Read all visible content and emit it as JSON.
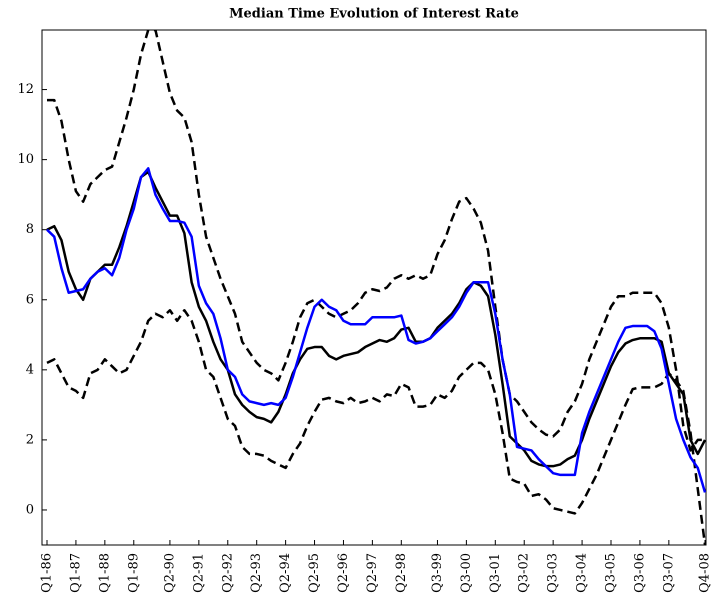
{
  "chart_data": {
    "type": "line",
    "title": "Median Time Evolution of Interest Rate",
    "categories": [
      "Q1-86",
      null,
      null,
      null,
      "Q1-87",
      null,
      null,
      null,
      "Q1-88",
      null,
      null,
      null,
      "Q1-89",
      null,
      null,
      null,
      null,
      "Q2-90",
      null,
      null,
      null,
      "Q2-91",
      null,
      null,
      null,
      "Q2-92",
      null,
      null,
      null,
      "Q2-93",
      null,
      null,
      null,
      "Q2-94",
      null,
      null,
      null,
      "Q2-95",
      null,
      null,
      null,
      "Q2-96",
      null,
      null,
      null,
      "Q2-97",
      null,
      null,
      null,
      "Q2-98",
      null,
      null,
      null,
      null,
      "Q3-99",
      null,
      null,
      null,
      "Q3-00",
      null,
      null,
      null,
      "Q3-01",
      null,
      null,
      null,
      "Q3-02",
      null,
      null,
      null,
      "Q3-03",
      null,
      null,
      null,
      "Q3-04",
      null,
      null,
      null,
      "Q3-05",
      null,
      null,
      null,
      "Q3-06",
      null,
      null,
      null,
      "Q3-07",
      null,
      null,
      null,
      null,
      "Q4-08"
    ],
    "series": [
      {
        "color": "#000000",
        "linestyle": "dashed",
        "values": [
          11.7,
          11.7,
          11.1,
          10.0,
          9.1,
          8.8,
          9.3,
          9.5,
          9.7,
          9.8,
          10.5,
          11.2,
          12.0,
          13.0,
          13.7,
          13.7,
          12.8,
          11.9,
          11.4,
          11.2,
          10.5,
          9.0,
          7.8,
          7.2,
          6.6,
          6.1,
          5.6,
          4.8,
          4.5,
          4.2,
          4.0,
          3.9,
          3.7,
          4.2,
          4.8,
          5.5,
          5.9,
          6.0,
          5.8,
          5.6,
          5.5,
          5.6,
          5.7,
          5.9,
          6.2,
          6.3,
          6.25,
          6.35,
          6.6,
          6.7,
          6.6,
          6.7,
          6.6,
          6.7,
          7.3,
          7.7,
          8.3,
          8.8,
          8.9,
          8.6,
          8.2,
          7.4,
          5.8,
          4.3,
          3.3,
          3.1,
          2.8,
          2.5,
          2.3,
          2.15,
          2.1,
          2.3,
          2.8,
          3.1,
          3.6,
          4.3,
          4.8,
          5.3,
          5.8,
          6.1,
          6.1,
          6.2,
          6.2,
          6.2,
          6.2,
          5.9,
          5.2,
          4.0,
          2.4,
          1.7,
          2.0,
          2.0
        ]
      },
      {
        "color": "#000000",
        "linestyle": "dashed",
        "values": [
          4.2,
          4.3,
          3.9,
          3.5,
          3.4,
          3.2,
          3.9,
          4.0,
          4.3,
          4.1,
          3.9,
          4.0,
          4.4,
          4.8,
          5.4,
          5.6,
          5.5,
          5.7,
          5.4,
          5.7,
          5.4,
          4.8,
          4.0,
          3.8,
          3.2,
          2.6,
          2.4,
          1.8,
          1.6,
          1.6,
          1.55,
          1.4,
          1.3,
          1.2,
          1.6,
          1.9,
          2.4,
          2.8,
          3.15,
          3.2,
          3.1,
          3.05,
          3.2,
          3.05,
          3.1,
          3.2,
          3.1,
          3.3,
          3.25,
          3.6,
          3.5,
          2.95,
          2.95,
          3.0,
          3.3,
          3.2,
          3.4,
          3.8,
          4.0,
          4.2,
          4.2,
          4.0,
          3.3,
          2.2,
          0.9,
          0.8,
          0.75,
          0.4,
          0.45,
          0.3,
          0.05,
          0.0,
          -0.05,
          -0.1,
          0.2,
          0.6,
          1.0,
          1.5,
          2.0,
          2.5,
          3.0,
          3.45,
          3.5,
          3.5,
          3.5,
          3.6,
          3.9,
          3.7,
          3.4,
          2.2,
          0.6,
          -1.0
        ]
      },
      {
        "color": "#000000",
        "linestyle": "solid",
        "values": [
          8.0,
          8.1,
          7.7,
          6.8,
          6.3,
          6.0,
          6.6,
          6.8,
          7.0,
          7.0,
          7.5,
          8.1,
          8.8,
          9.5,
          9.65,
          9.2,
          8.8,
          8.4,
          8.4,
          7.9,
          6.5,
          5.8,
          5.4,
          4.8,
          4.3,
          4.0,
          3.3,
          3.0,
          2.8,
          2.65,
          2.6,
          2.5,
          2.8,
          3.3,
          3.9,
          4.3,
          4.6,
          4.65,
          4.65,
          4.4,
          4.3,
          4.4,
          4.45,
          4.5,
          4.65,
          4.75,
          4.85,
          4.8,
          4.9,
          5.15,
          5.2,
          4.8,
          4.8,
          4.9,
          5.2,
          5.4,
          5.6,
          5.9,
          6.3,
          6.5,
          6.4,
          6.1,
          5.0,
          3.6,
          2.1,
          1.9,
          1.7,
          1.4,
          1.3,
          1.25,
          1.25,
          1.3,
          1.45,
          1.55,
          2.0,
          2.6,
          3.1,
          3.6,
          4.1,
          4.5,
          4.75,
          4.85,
          4.9,
          4.9,
          4.9,
          4.8,
          3.9,
          3.6,
          3.3,
          2.0,
          1.6,
          2.0
        ]
      },
      {
        "color": "#0000ff",
        "linestyle": "solid",
        "values": [
          8.0,
          7.8,
          6.9,
          6.2,
          6.25,
          6.3,
          6.6,
          6.8,
          6.9,
          6.7,
          7.2,
          8.0,
          8.6,
          9.5,
          9.75,
          9.0,
          8.6,
          8.25,
          8.25,
          8.2,
          7.8,
          6.4,
          5.9,
          5.6,
          4.9,
          4.0,
          3.8,
          3.3,
          3.1,
          3.05,
          3.0,
          3.05,
          3.0,
          3.2,
          3.8,
          4.5,
          5.2,
          5.8,
          6.0,
          5.8,
          5.7,
          5.4,
          5.3,
          5.3,
          5.3,
          5.5,
          5.5,
          5.5,
          5.5,
          5.55,
          4.85,
          4.75,
          4.8,
          4.9,
          5.1,
          5.3,
          5.5,
          5.8,
          6.2,
          6.5,
          6.5,
          6.5,
          5.6,
          4.3,
          3.3,
          1.8,
          1.75,
          1.7,
          1.45,
          1.25,
          1.05,
          1.0,
          1.0,
          1.0,
          2.2,
          2.8,
          3.3,
          3.8,
          4.3,
          4.8,
          5.2,
          5.25,
          5.25,
          5.25,
          5.1,
          4.6,
          3.6,
          2.6,
          2.0,
          1.5,
          1.2,
          0.5
        ]
      }
    ],
    "ylim": [
      -1,
      13.7
    ],
    "yticks": [
      0,
      2,
      4,
      6,
      8,
      10,
      12
    ],
    "grid": false
  }
}
